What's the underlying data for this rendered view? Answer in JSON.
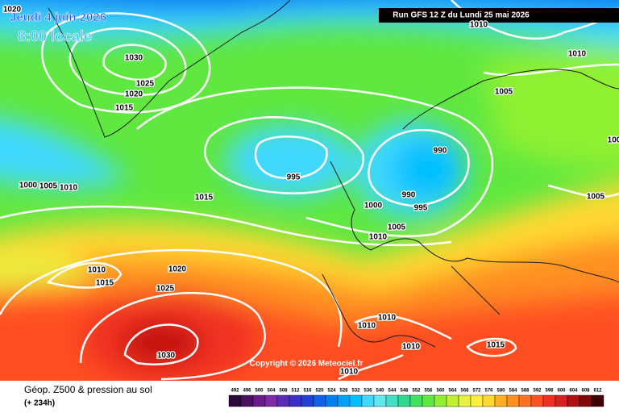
{
  "header": {
    "date": "Jeudi 4 juin 2026",
    "time": "8:00 locale",
    "run": "Run GFS 12 Z du Lundi 25 mai 2026"
  },
  "isobar_labels": [
    "1020",
    "1030",
    "1025",
    "1020",
    "1015",
    "1000",
    "1005",
    "1010",
    "995",
    "1000",
    "990",
    "995",
    "1005",
    "1010",
    "1015",
    "1010",
    "1015",
    "1020",
    "1025",
    "1030",
    "1010",
    "1010",
    "1010",
    "1015",
    "1010",
    "990",
    "1005",
    "1010",
    "1010",
    "1005",
    "100"
  ],
  "copyright": "Copyright © 2026 Meteociel.fr",
  "legend": {
    "title": "Géop. Z500 & pression au sol",
    "lead": "(+ 234h)",
    "scale": [
      {
        "label": "492",
        "color": "#2a0a3a"
      },
      {
        "label": "496",
        "color": "#4b1060"
      },
      {
        "label": "500",
        "color": "#6a1a8a"
      },
      {
        "label": "504",
        "color": "#7d2aa8"
      },
      {
        "label": "508",
        "color": "#5a2ab8"
      },
      {
        "label": "512",
        "color": "#3a30c8"
      },
      {
        "label": "516",
        "color": "#2040d8"
      },
      {
        "label": "520",
        "color": "#1060e8"
      },
      {
        "label": "524",
        "color": "#0080f0"
      },
      {
        "label": "528",
        "color": "#00a0f8"
      },
      {
        "label": "532",
        "color": "#00c0ff"
      },
      {
        "label": "536",
        "color": "#40d8ff"
      },
      {
        "label": "540",
        "color": "#60e8f0"
      },
      {
        "label": "544",
        "color": "#40e0c0"
      },
      {
        "label": "548",
        "color": "#30d890"
      },
      {
        "label": "552",
        "color": "#40e060"
      },
      {
        "label": "556",
        "color": "#60e840"
      },
      {
        "label": "560",
        "color": "#90f030"
      },
      {
        "label": "564",
        "color": "#c0f030"
      },
      {
        "label": "568",
        "color": "#e8f040"
      },
      {
        "label": "572",
        "color": "#fff040"
      },
      {
        "label": "576",
        "color": "#ffd830"
      },
      {
        "label": "580",
        "color": "#ffb020"
      },
      {
        "label": "584",
        "color": "#ff9020"
      },
      {
        "label": "588",
        "color": "#ff7020"
      },
      {
        "label": "592",
        "color": "#ff5020"
      },
      {
        "label": "596",
        "color": "#f03020"
      },
      {
        "label": "600",
        "color": "#d82020"
      },
      {
        "label": "604",
        "color": "#b01010"
      },
      {
        "label": "608",
        "color": "#800808"
      },
      {
        "label": "612",
        "color": "#400000"
      }
    ]
  }
}
